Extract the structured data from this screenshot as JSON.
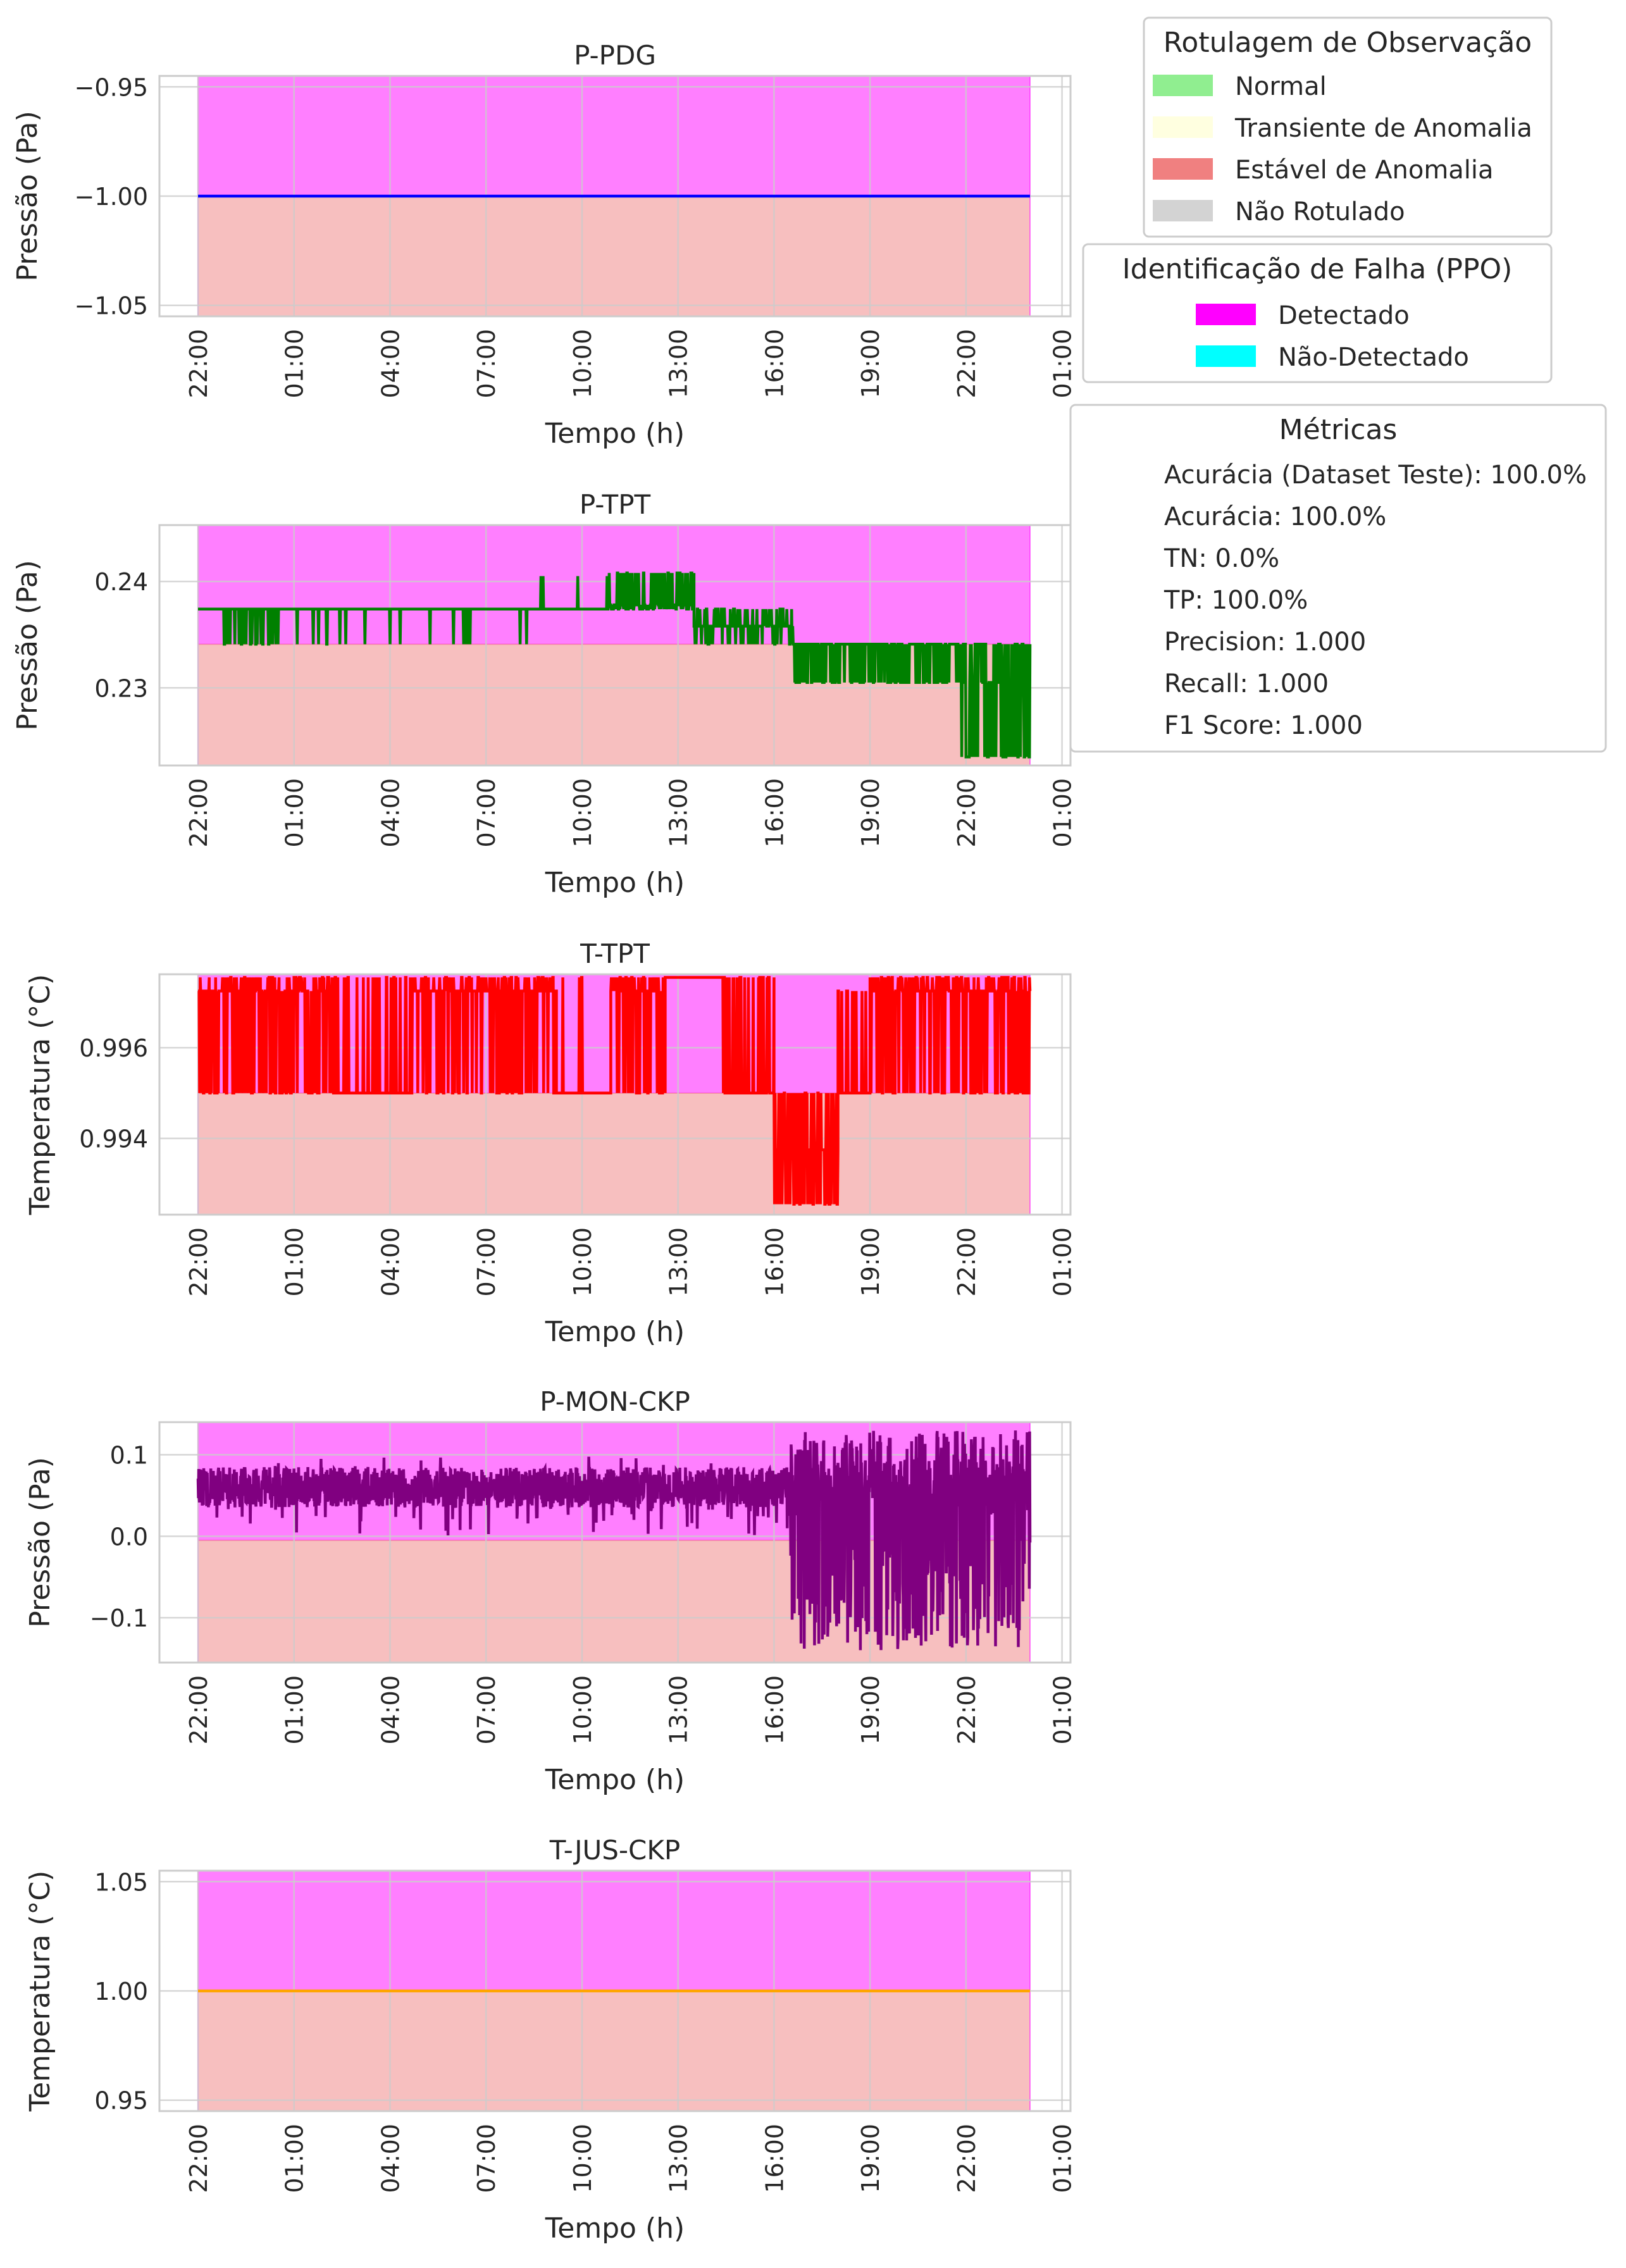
{
  "chart_data": [
    {
      "type": "line",
      "title": "P-PDG",
      "xlabel": "Tempo (h)",
      "ylabel": "Pressão (Pa)",
      "x_ticks": [
        "22:00",
        "01:00",
        "04:00",
        "07:00",
        "10:00",
        "13:00",
        "16:00",
        "19:00",
        "22:00",
        "01:00"
      ],
      "y_ticks": [
        "−0.95",
        "−1.00",
        "−1.05"
      ],
      "y_tick_values": [
        -0.95,
        -1.0,
        -1.05
      ],
      "ylim": [
        -1.055,
        -0.945
      ],
      "x_range_hours": [
        0,
        26
      ],
      "grid": true,
      "line_color": "#0000ff",
      "regions": [
        {
          "label": "Estável de Anomalia",
          "from": -1.055,
          "to": -1.0,
          "color": "#f08080"
        },
        {
          "label": "Detectado",
          "from": -1.0,
          "to": -0.945,
          "color": "#ff00ff"
        }
      ],
      "series": [
        {
          "pattern": "constant",
          "values": [
            -1.0
          ]
        }
      ]
    },
    {
      "type": "line",
      "title": "P-TPT",
      "xlabel": "Tempo (h)",
      "ylabel": "Pressão (Pa)",
      "x_ticks": [
        "22:00",
        "01:00",
        "04:00",
        "07:00",
        "10:00",
        "13:00",
        "16:00",
        "19:00",
        "22:00",
        "01:00"
      ],
      "y_ticks": [
        "0.24",
        "0.23"
      ],
      "y_tick_values": [
        0.24,
        0.23
      ],
      "ylim": [
        0.2227,
        0.2453
      ],
      "x_range_hours": [
        0,
        26
      ],
      "grid": true,
      "line_color": "#008000",
      "regions": [
        {
          "label": "Estável de Anomalia",
          "from": 0.2227,
          "to": 0.2341,
          "color": "#f08080"
        },
        {
          "label": "Detectado",
          "from": 0.2341,
          "to": 0.2453,
          "color": "#ff00ff"
        }
      ],
      "series": [
        {
          "pattern": "segments",
          "segments": [
            {
              "t0": 0,
              "t1": 0.8,
              "base": 0.2374,
              "low": 0.2374,
              "high": 0.2374,
              "spikes": 0
            },
            {
              "t0": 0.8,
              "t1": 2.6,
              "base": 0.2374,
              "low": 0.2341,
              "high": 0.2374,
              "spikes": 0.4
            },
            {
              "t0": 2.6,
              "t1": 10.3,
              "base": 0.2374,
              "low": 0.2341,
              "high": 0.2374,
              "spikes": 0.04
            },
            {
              "t0": 10.3,
              "t1": 12.8,
              "base": 0.2374,
              "low": 0.2374,
              "high": 0.2405,
              "spikes": 0.03
            },
            {
              "t0": 12.8,
              "t1": 15.5,
              "base": 0.2378,
              "low": 0.2374,
              "high": 0.2408,
              "spikes": 0.6
            },
            {
              "t0": 15.5,
              "t1": 18.6,
              "base": 0.2358,
              "low": 0.2341,
              "high": 0.2374,
              "spikes": 0.4
            },
            {
              "t0": 18.6,
              "t1": 23.8,
              "base": 0.2341,
              "low": 0.2305,
              "high": 0.2341,
              "spikes": 0.7
            },
            {
              "t0": 23.8,
              "t1": 26,
              "base": 0.2305,
              "low": 0.2235,
              "high": 0.2341,
              "spikes": 0.6
            }
          ]
        }
      ]
    },
    {
      "type": "line",
      "title": "T-TPT",
      "xlabel": "Tempo (h)",
      "ylabel": "Temperatura (°C)",
      "x_ticks": [
        "22:00",
        "01:00",
        "04:00",
        "07:00",
        "10:00",
        "13:00",
        "16:00",
        "19:00",
        "22:00",
        "01:00"
      ],
      "y_ticks": [
        "0.996",
        "0.994"
      ],
      "y_tick_values": [
        0.996,
        0.994
      ],
      "ylim": [
        0.99232,
        0.99762
      ],
      "x_range_hours": [
        0,
        26
      ],
      "grid": true,
      "line_color": "#ff0000",
      "regions": [
        {
          "label": "Estável de Anomalia",
          "from": 0.99232,
          "to": 0.995,
          "color": "#f08080"
        },
        {
          "label": "Detectado",
          "from": 0.995,
          "to": 0.99762,
          "color": "#ff00ff"
        }
      ],
      "series": [
        {
          "pattern": "segments",
          "segments": [
            {
              "t0": 0,
              "t1": 4.2,
              "base": 0.99725,
              "low": 0.995,
              "high": 0.99755,
              "spikes": 0.5
            },
            {
              "t0": 4.2,
              "t1": 6.7,
              "base": 0.995,
              "low": 0.995,
              "high": 0.99755,
              "spikes": 0.3
            },
            {
              "t0": 6.7,
              "t1": 11.2,
              "base": 0.99725,
              "low": 0.995,
              "high": 0.99755,
              "spikes": 0.45
            },
            {
              "t0": 11.2,
              "t1": 12.9,
              "base": 0.995,
              "low": 0.995,
              "high": 0.99755,
              "spikes": 0.1
            },
            {
              "t0": 12.9,
              "t1": 14.6,
              "base": 0.99725,
              "low": 0.995,
              "high": 0.99755,
              "spikes": 0.5
            },
            {
              "t0": 14.6,
              "t1": 16.4,
              "base": 0.99755,
              "low": 0.995,
              "high": 0.99755,
              "spikes": 0.02
            },
            {
              "t0": 16.4,
              "t1": 18.0,
              "base": 0.995,
              "low": 0.995,
              "high": 0.99755,
              "spikes": 0.4
            },
            {
              "t0": 18.0,
              "t1": 20.0,
              "base": 0.99375,
              "low": 0.99255,
              "high": 0.995,
              "spikes": 0.55
            },
            {
              "t0": 20.0,
              "t1": 21.0,
              "base": 0.995,
              "low": 0.995,
              "high": 0.99725,
              "spikes": 0.3
            },
            {
              "t0": 21.0,
              "t1": 26,
              "base": 0.99725,
              "low": 0.995,
              "high": 0.99755,
              "spikes": 0.45
            }
          ]
        }
      ]
    },
    {
      "type": "line",
      "title": "P-MON-CKP",
      "xlabel": "Tempo (h)",
      "ylabel": "Pressão (Pa)",
      "x_ticks": [
        "22:00",
        "01:00",
        "04:00",
        "07:00",
        "10:00",
        "13:00",
        "16:00",
        "19:00",
        "22:00",
        "01:00"
      ],
      "y_ticks": [
        "0.1",
        "0.0",
        "−0.1"
      ],
      "y_tick_values": [
        0.1,
        0.0,
        -0.1
      ],
      "ylim": [
        -0.155,
        0.14
      ],
      "x_range_hours": [
        0,
        26
      ],
      "grid": true,
      "line_color": "#800080",
      "regions": [
        {
          "label": "Estável de Anomalia",
          "from": -0.155,
          "to": -0.005,
          "color": "#f08080"
        },
        {
          "label": "Detectado",
          "from": -0.005,
          "to": 0.14,
          "color": "#ff00ff"
        }
      ],
      "series": [
        {
          "pattern": "noise",
          "segments": [
            {
              "t0": 0,
              "t1": 18.5,
              "base": 0.06,
              "amp": 0.025,
              "low": 0.0,
              "high": 0.1,
              "spikes": 0.05
            },
            {
              "t0": 18.5,
              "t1": 26,
              "base": 0.06,
              "amp": 0.035,
              "low": -0.14,
              "high": 0.13,
              "spikes": 0.35
            }
          ]
        }
      ]
    },
    {
      "type": "line",
      "title": "T-JUS-CKP",
      "xlabel": "Tempo (h)",
      "ylabel": "Temperatura (°C)",
      "x_ticks": [
        "22:00",
        "01:00",
        "04:00",
        "07:00",
        "10:00",
        "13:00",
        "16:00",
        "19:00",
        "22:00",
        "01:00"
      ],
      "y_ticks": [
        "1.05",
        "1.00",
        "0.95"
      ],
      "y_tick_values": [
        1.05,
        1.0,
        0.95
      ],
      "ylim": [
        0.945,
        1.055
      ],
      "x_range_hours": [
        0,
        26
      ],
      "grid": true,
      "line_color": "#ffa500",
      "regions": [
        {
          "label": "Estável de Anomalia",
          "from": 0.945,
          "to": 1.0,
          "color": "#f08080"
        },
        {
          "label": "Detectado",
          "from": 1.0,
          "to": 1.055,
          "color": "#ff00ff"
        }
      ],
      "series": [
        {
          "pattern": "constant",
          "values": [
            1.0
          ]
        }
      ]
    }
  ],
  "legends": {
    "observation": {
      "title": "Rotulagem de Observação",
      "placement": "top-right",
      "items": [
        {
          "label": "Normal",
          "color": "#90ee90"
        },
        {
          "label": "Transiente de Anomalia",
          "color": "#ffffe0"
        },
        {
          "label": "Estável de Anomalia",
          "color": "#f08080"
        },
        {
          "label": "Não Rotulado",
          "color": "#d3d3d3"
        }
      ]
    },
    "fault": {
      "title": "Identificação de Falha (PPO)",
      "placement": "right",
      "items": [
        {
          "label": "Detectado",
          "color": "#ff00ff"
        },
        {
          "label": "Não-Detectado",
          "color": "#00ffff"
        }
      ]
    },
    "metrics": {
      "title": "Métricas",
      "placement": "right",
      "items": [
        "Acurácia (Dataset Teste): 100.0%",
        "Acurácia: 100.0%",
        "TN: 0.0%",
        "TP: 100.0%",
        "Precision: 1.000",
        "Recall: 1.000",
        "F1 Score: 1.000"
      ]
    }
  }
}
